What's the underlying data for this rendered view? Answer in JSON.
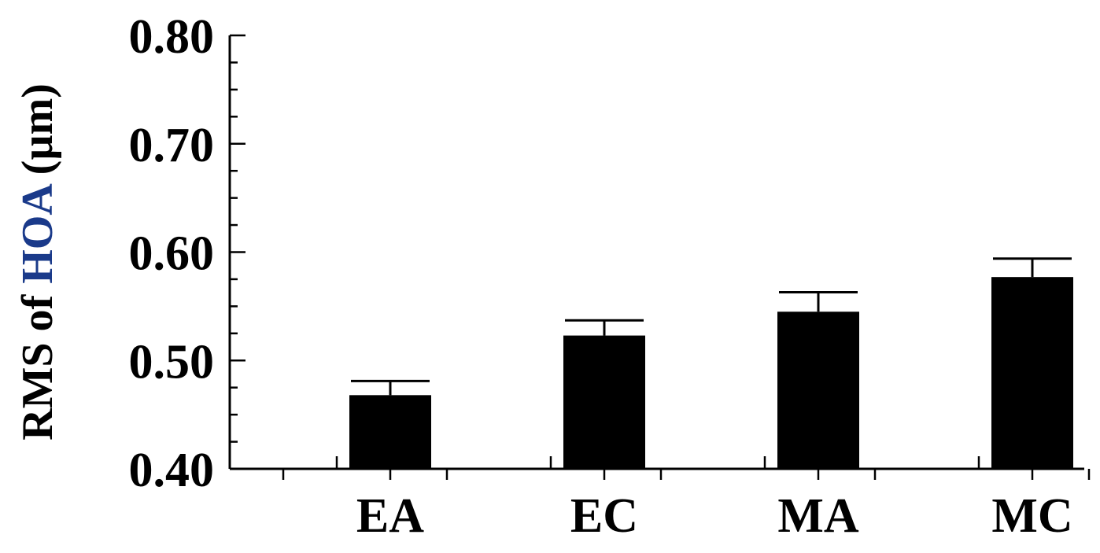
{
  "chart_data": {
    "type": "bar",
    "categories": [
      "EA",
      "EC",
      "MA",
      "MC"
    ],
    "values": [
      0.468,
      0.523,
      0.545,
      0.577
    ],
    "errors": [
      0.013,
      0.014,
      0.018,
      0.017
    ],
    "title": "",
    "xlabel": "",
    "ylabel": {
      "prefix": "RMS of ",
      "highlight": "HOA",
      "suffix": " (µm)"
    },
    "ylim": [
      0.4,
      0.8
    ],
    "yticks": [
      "0.40",
      "0.50",
      "0.60",
      "0.70",
      "0.80"
    ],
    "bar_color": "#000000",
    "highlight_color": "#1a3a8a",
    "grid": false
  }
}
